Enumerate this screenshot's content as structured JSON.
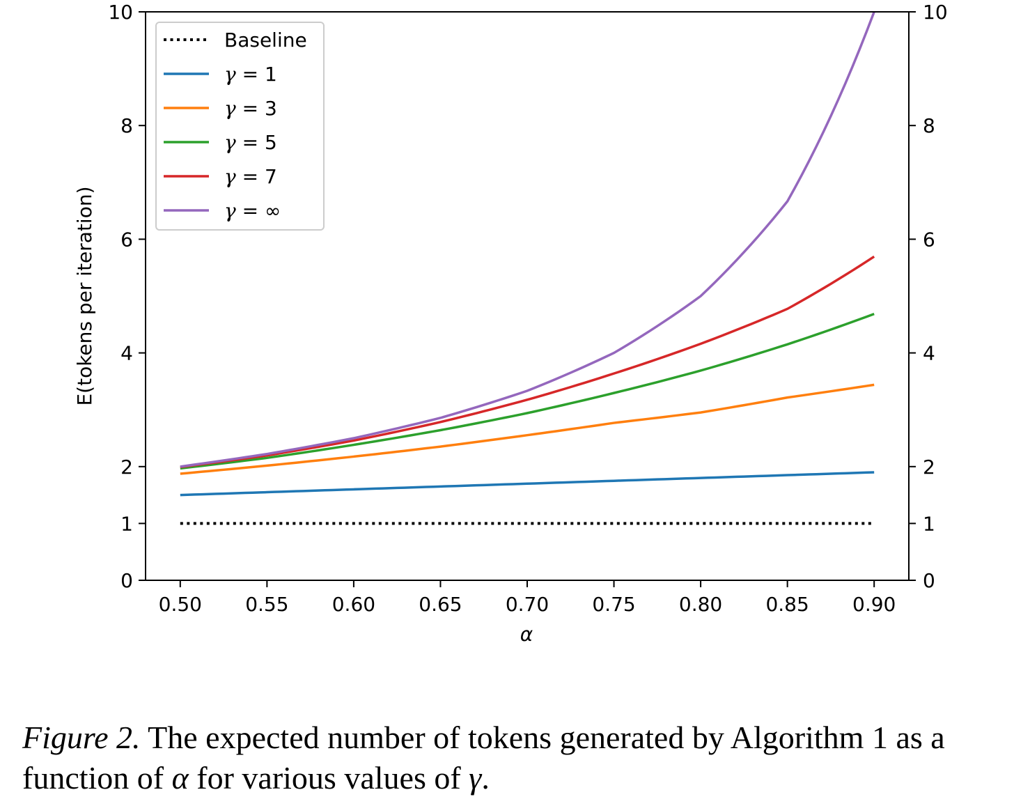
{
  "chart_data": {
    "type": "line",
    "xlabel": "α",
    "ylabel": "E(tokens per iteration)",
    "xlim": [
      0.48,
      0.92
    ],
    "ylim": [
      0,
      10
    ],
    "xticks": [
      "0.50",
      "0.55",
      "0.60",
      "0.65",
      "0.70",
      "0.75",
      "0.80",
      "0.85",
      "0.90"
    ],
    "yticks": [
      "0",
      "1",
      "2",
      "4",
      "6",
      "8",
      "10"
    ],
    "grid": false,
    "legend_position": "top-left",
    "x": [
      0.5,
      0.55,
      0.6,
      0.65,
      0.7,
      0.75,
      0.8,
      0.85,
      0.9
    ],
    "series": [
      {
        "name": "Baseline",
        "label_text": "Baseline",
        "color": "#000000",
        "style": "dotted",
        "values": [
          1,
          1,
          1,
          1,
          1,
          1,
          1,
          1,
          1
        ]
      },
      {
        "name": "γ = 1",
        "label_sym": "γ",
        "label_rest": " = 1",
        "color": "#1f77b4",
        "style": "solid",
        "values": [
          1.5,
          1.55,
          1.6,
          1.65,
          1.7,
          1.75,
          1.8,
          1.85,
          1.9
        ]
      },
      {
        "name": "γ = 3",
        "label_sym": "γ",
        "label_rest": " = 3",
        "color": "#ff7f0e",
        "style": "solid",
        "values": [
          1.875,
          2.017,
          2.176,
          2.352,
          2.553,
          2.769,
          2.952,
          3.215,
          3.439
        ]
      },
      {
        "name": "γ = 5",
        "label_sym": "γ",
        "label_rest": " = 5",
        "color": "#2ca02c",
        "style": "solid",
        "values": [
          1.969,
          2.153,
          2.383,
          2.641,
          2.941,
          3.295,
          3.689,
          4.151,
          4.686
        ]
      },
      {
        "name": "γ = 7",
        "label_sym": "γ",
        "label_rest": " = 7",
        "color": "#d62728",
        "style": "solid",
        "values": [
          1.992,
          2.196,
          2.458,
          2.784,
          3.176,
          3.638,
          4.161,
          4.775,
          5.695
        ]
      },
      {
        "name": "γ = ∞",
        "label_sym": "γ",
        "label_rest": " = ∞",
        "color": "#9467bd",
        "style": "solid",
        "values": [
          2.0,
          2.222,
          2.5,
          2.857,
          3.333,
          4.0,
          5.0,
          6.667,
          10.0
        ]
      }
    ]
  },
  "caption": {
    "label": "Figure 2.",
    "text_1": " The expected number of tokens generated by Algorithm 1 as a function of ",
    "alpha": "α",
    "text_2": " for various values of ",
    "gamma": "γ",
    "text_3": "."
  }
}
